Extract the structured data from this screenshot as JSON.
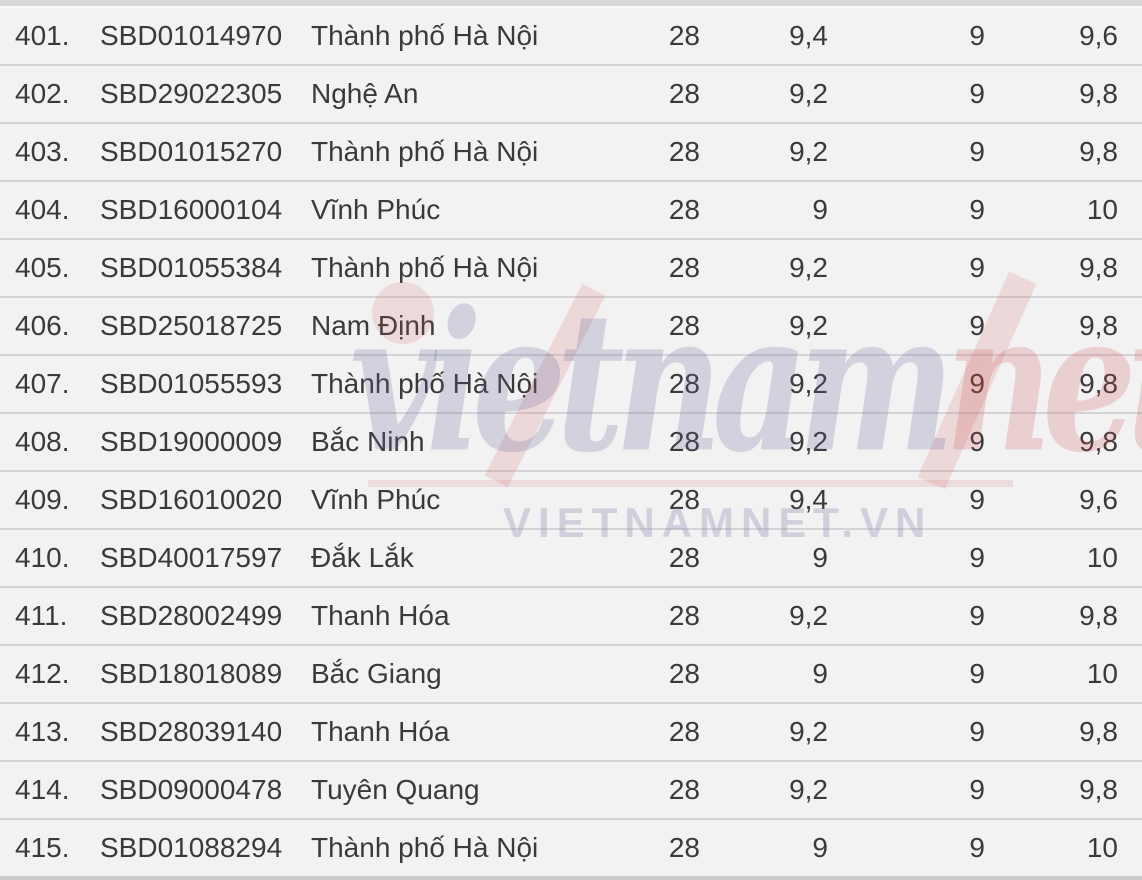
{
  "table": {
    "rows": [
      [
        "401.",
        "SBD01014970",
        "Thành phố Hà Nội",
        "28",
        "9,4",
        "9",
        "9,6"
      ],
      [
        "402.",
        "SBD29022305",
        "Nghệ An",
        "28",
        "9,2",
        "9",
        "9,8"
      ],
      [
        "403.",
        "SBD01015270",
        "Thành phố Hà Nội",
        "28",
        "9,2",
        "9",
        "9,8"
      ],
      [
        "404.",
        "SBD16000104",
        "Vĩnh Phúc",
        "28",
        "9",
        "9",
        "10"
      ],
      [
        "405.",
        "SBD01055384",
        "Thành phố Hà Nội",
        "28",
        "9,2",
        "9",
        "9,8"
      ],
      [
        "406.",
        "SBD25018725",
        "Nam Định",
        "28",
        "9,2",
        "9",
        "9,8"
      ],
      [
        "407.",
        "SBD01055593",
        "Thành phố Hà Nội",
        "28",
        "9,2",
        "9",
        "9,8"
      ],
      [
        "408.",
        "SBD19000009",
        "Bắc Ninh",
        "28",
        "9,2",
        "9",
        "9,8"
      ],
      [
        "409.",
        "SBD16010020",
        "Vĩnh Phúc",
        "28",
        "9,4",
        "9",
        "9,6"
      ],
      [
        "410.",
        "SBD40017597",
        "Đắk Lắk",
        "28",
        "9",
        "9",
        "10"
      ],
      [
        "411.",
        "SBD28002499",
        "Thanh Hóa",
        "28",
        "9,2",
        "9",
        "9,8"
      ],
      [
        "412.",
        "SBD18018089",
        "Bắc Giang",
        "28",
        "9",
        "9",
        "10"
      ],
      [
        "413.",
        "SBD28039140",
        "Thanh Hóa",
        "28",
        "9,2",
        "9",
        "9,8"
      ],
      [
        "414.",
        "SBD09000478",
        "Tuyên Quang",
        "28",
        "9,2",
        "9",
        "9,8"
      ],
      [
        "415.",
        "SBD01088294",
        "Thành phố Hà Nội",
        "28",
        "9",
        "9",
        "10"
      ]
    ]
  },
  "watermark": {
    "logo_blue": "vietnam",
    "logo_red": "net",
    "site": "VIETNAMNET.VN"
  },
  "colors": {
    "row_bg": "#f2f2f3",
    "separator": "#d4d4d6",
    "text": "#3a3a3a",
    "watermark_blue": "#b9b9d1",
    "watermark_red": "#e4b9b9"
  }
}
